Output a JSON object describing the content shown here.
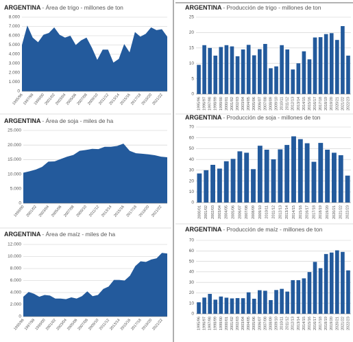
{
  "chart_data": [
    {
      "type": "area",
      "title": "ARGENTINA",
      "subtitle": "- Área de trigo - millones de ton",
      "color": "#235a9c",
      "grid": true,
      "categories": [
        "1995/96",
        null,
        "1997/98",
        null,
        "1999/00",
        null,
        "2001/02",
        null,
        "2003/04",
        null,
        "2005/06",
        null,
        "2007/08",
        null,
        "2009/10",
        null,
        "2011/12",
        null,
        "2013/14",
        null,
        "2015/16",
        null,
        "2017/18",
        null,
        "2019/20",
        null,
        "2021/22",
        null
      ],
      "values": [
        5000,
        7100,
        5800,
        5300,
        6100,
        6300,
        6900,
        6100,
        5800,
        6000,
        5000,
        5500,
        5800,
        4700,
        3400,
        4500,
        4500,
        3100,
        3500,
        5100,
        4200,
        6400,
        5900,
        6200,
        6900,
        6600,
        6700,
        5900
      ],
      "ylim": [
        0,
        8000
      ],
      "yticks": [
        0,
        {
          "value": 1000,
          "label": "1.000"
        },
        {
          "value": 2000,
          "label": "2.000"
        },
        {
          "value": 3000,
          "label": "3.000"
        },
        {
          "value": 4000,
          "label": "4.000"
        },
        {
          "value": 5000,
          "label": "5.000"
        },
        {
          "value": 6000,
          "label": "6.000"
        },
        {
          "value": 7000,
          "label": "7.000"
        },
        {
          "value": 8000,
          "label": "8.000"
        }
      ]
    },
    {
      "type": "bar",
      "title": "ARGENTINA",
      "subtitle": "- Producción de trigo - millones de ton",
      "color": "#235a9c",
      "grid": true,
      "categories": [
        "1995/96",
        "1996/97",
        "1997/98",
        "1998/99",
        "1999/00",
        "2000/01",
        "2001/02",
        "2002/03",
        "2003/04",
        "2004/05",
        "2005/06",
        "2006/07",
        "2007/08",
        "2008/09",
        "2009/10",
        "2010/11",
        "2011/12",
        "2012/13",
        "2013/14",
        "2014/15",
        "2015/16",
        "2016/17",
        "2017/18",
        "2018/19",
        "2019/20",
        "2020/21",
        "2021/22",
        "2022/23"
      ],
      "values": [
        9.5,
        15.9,
        15,
        12.5,
        15.3,
        15.9,
        15.5,
        12.3,
        14.5,
        16,
        12.6,
        14.6,
        16.3,
        8.4,
        9,
        15.9,
        14.5,
        8,
        10,
        13.9,
        11.3,
        18.4,
        18.5,
        19.5,
        19.8,
        17.6,
        22.1,
        12.5
      ],
      "ylim": [
        0,
        25
      ],
      "yticks": [
        0,
        5,
        10,
        15,
        20,
        25
      ]
    },
    {
      "type": "area",
      "title": "ARGENTINA",
      "subtitle": "- Área de soja - miles de ha",
      "color": "#235a9c",
      "grid": true,
      "categories": [
        "1999/00",
        null,
        "2001/02",
        null,
        "2003/04",
        null,
        "2005/06",
        null,
        "2007/08",
        null,
        "2009/10",
        null,
        "2011/12",
        null,
        "2013/14",
        null,
        "2015/16",
        null,
        "2017/18",
        null,
        "2019/20",
        null,
        "2021/22",
        null
      ],
      "values": [
        10500,
        11000,
        11600,
        12500,
        14300,
        14400,
        15200,
        16000,
        16600,
        18000,
        18300,
        18700,
        18600,
        19400,
        19400,
        19700,
        20500,
        18000,
        17200,
        17000,
        16800,
        16500,
        16000,
        15800
      ],
      "ylim": [
        0,
        25000
      ],
      "yticks": [
        0,
        {
          "value": 5000,
          "label": "5.000"
        },
        {
          "value": 10000,
          "label": "10.000"
        },
        {
          "value": 15000,
          "label": "15.000"
        },
        {
          "value": 20000,
          "label": "20.000"
        },
        {
          "value": 25000,
          "label": "25.000"
        }
      ]
    },
    {
      "type": "bar",
      "title": "ARGENTINA",
      "subtitle": "- Producción de soja - millones de ton",
      "color": "#235a9c",
      "grid": true,
      "categories": [
        "2000/01",
        "2001/02",
        "2002/03",
        "2003/04",
        "2004/05",
        "2005/06",
        "2006/07",
        "2007/08",
        "2008/09",
        "2009/10",
        "2010/11",
        "2011/12",
        "2012/13",
        "2013/14",
        "2014/15",
        "2015/16",
        "2016/17",
        "2017/18",
        "2018/19",
        "2019/20",
        "2020/21",
        "2021/22",
        "2022/23"
      ],
      "values": [
        27,
        30,
        35,
        31.5,
        38.3,
        40.5,
        47.5,
        46.2,
        31,
        52.7,
        49,
        40.1,
        49.3,
        53.4,
        61.4,
        58.8,
        55,
        37.8,
        55.3,
        49,
        46.2,
        43.9,
        25
      ],
      "ylim": [
        0,
        70
      ],
      "yticks": [
        0,
        10,
        20,
        30,
        40,
        50,
        60,
        70
      ]
    },
    {
      "type": "area",
      "title": "ARGENTINA",
      "subtitle": "- Área de maíz - miles de ha",
      "color": "#235a9c",
      "grid": true,
      "categories": [
        "1995/96",
        null,
        "1997/98",
        null,
        "1999/00",
        null,
        "2001/02",
        null,
        "2003/04",
        null,
        "2005/06",
        null,
        "2007/08",
        null,
        "2009/10",
        null,
        "2011/12",
        null,
        "2013/14",
        null,
        "2015/16",
        null,
        "2017/18",
        null,
        "2019/20",
        null,
        "2021/22",
        null
      ],
      "values": [
        3300,
        4100,
        3800,
        3300,
        3600,
        3500,
        3000,
        3000,
        2900,
        3200,
        3000,
        3400,
        4200,
        3400,
        3600,
        4600,
        5000,
        6100,
        6100,
        6000,
        6800,
        8400,
        9200,
        9100,
        9500,
        9700,
        10600,
        10500
      ],
      "ylim": [
        0,
        12000
      ],
      "yticks": [
        0,
        {
          "value": 2000,
          "label": "2.000"
        },
        {
          "value": 4000,
          "label": "4.000"
        },
        {
          "value": 6000,
          "label": "6.000"
        },
        {
          "value": 8000,
          "label": "8.000"
        },
        {
          "value": 10000,
          "label": "10.000"
        },
        {
          "value": 12000,
          "label": "12.000"
        }
      ]
    },
    {
      "type": "bar",
      "title": "ARGENTINA",
      "subtitle": "- Producción de maíz - millones de ton",
      "color": "#235a9c",
      "grid": true,
      "categories": [
        "1995/96",
        "1996/97",
        "1997/98",
        "1998/99",
        "1999/00",
        "2000/01",
        "2001/02",
        "2002/03",
        "2003/04",
        "2004/05",
        "2005/06",
        "2006/07",
        "2007/08",
        "2008/09",
        "2009/10",
        "2010/11",
        "2011/12",
        "2012/13",
        "2013/14",
        "2014/15",
        "2015/16",
        "2016/17",
        "2017/18",
        "2018/19",
        "2019/20",
        "2020/21",
        "2021/22",
        "2022/23"
      ],
      "values": [
        11,
        15.5,
        19,
        13.5,
        16.5,
        15.4,
        14.7,
        15,
        14.9,
        20.5,
        14.4,
        22.5,
        22,
        13.1,
        22.7,
        23.8,
        21.2,
        32.1,
        32.1,
        33.8,
        39.8,
        49.5,
        43.5,
        57,
        58.4,
        60.5,
        59,
        41.4
      ],
      "ylim": [
        0,
        70
      ],
      "yticks": [
        0,
        10,
        20,
        30,
        40,
        50,
        60,
        70
      ]
    }
  ]
}
